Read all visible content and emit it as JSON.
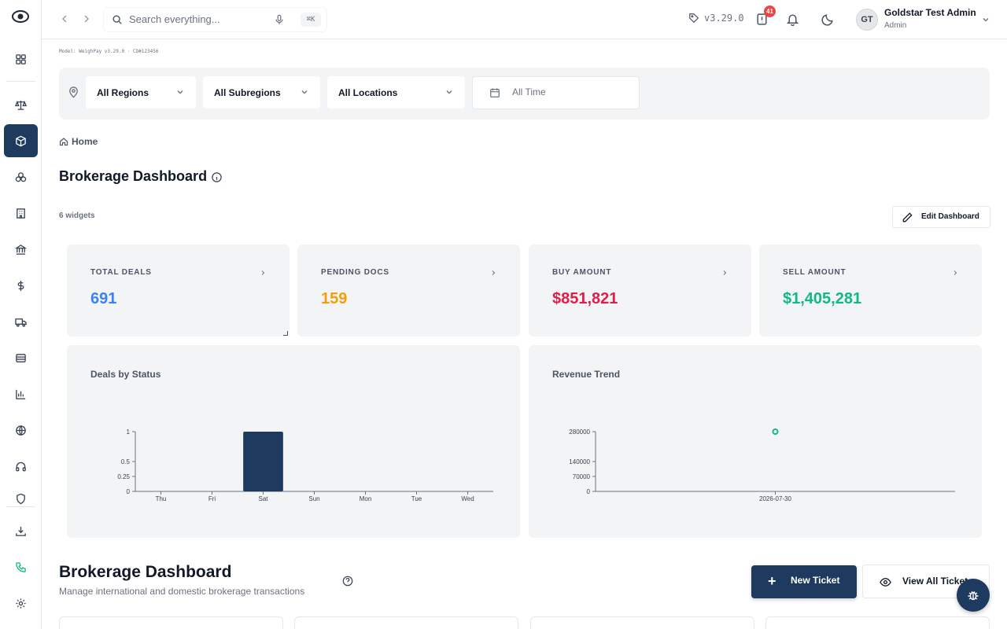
{
  "header": {
    "search_placeholder": "Search everything...",
    "shortcut": "⌘K",
    "version": "v3.29.0",
    "alerts_count": "41",
    "user": {
      "initials": "GT",
      "name": "Goldstar Test Admin",
      "role": "Admin"
    }
  },
  "model_info": "Model: WeighPay v3.29.0 · CD#123456",
  "filters": {
    "region": "All Regions",
    "subregion": "All Subregions",
    "location": "All Locations",
    "time": "All Time"
  },
  "breadcrumb": "Home",
  "page_title": "Brokerage Dashboard",
  "widgets_count": "6 widgets",
  "edit_button": "Edit Dashboard",
  "stats": [
    {
      "label": "TOTAL DEALS",
      "value": "691",
      "color": "#3b82f6"
    },
    {
      "label": "PENDING DOCS",
      "value": "159",
      "color": "#f59e0b"
    },
    {
      "label": "BUY AMOUNT",
      "value": "$851,821",
      "color": "#e11d48"
    },
    {
      "label": "SELL AMOUNT",
      "value": "$1,405,281",
      "color": "#10b981"
    }
  ],
  "charts": {
    "deals_title": "Deals by Status",
    "revenue_title": "Revenue Trend"
  },
  "chart_data": [
    {
      "type": "bar",
      "title": "Deals by Status",
      "categories": [
        "Thu",
        "Fri",
        "Sat",
        "Sun",
        "Mon",
        "Tue",
        "Wed"
      ],
      "values": [
        0,
        0,
        1,
        0,
        0,
        0,
        0
      ],
      "yticks": [
        "1",
        "0.5",
        "0.25",
        "0"
      ],
      "ylim": [
        0,
        1
      ],
      "bar_color": "#1e3a5f"
    },
    {
      "type": "scatter",
      "title": "Revenue Trend",
      "x": [
        "2026-07-30"
      ],
      "y": [
        280000
      ],
      "yticks": [
        "280000",
        "140000",
        "70000",
        "0"
      ],
      "ylim": [
        0,
        280000
      ],
      "point_color": "#10b981"
    }
  ],
  "section": {
    "title": "Brokerage Dashboard",
    "subtitle": "Manage international and domestic brokerage transactions",
    "new_ticket": "New Ticket",
    "view_tickets": "View All Tickets"
  }
}
